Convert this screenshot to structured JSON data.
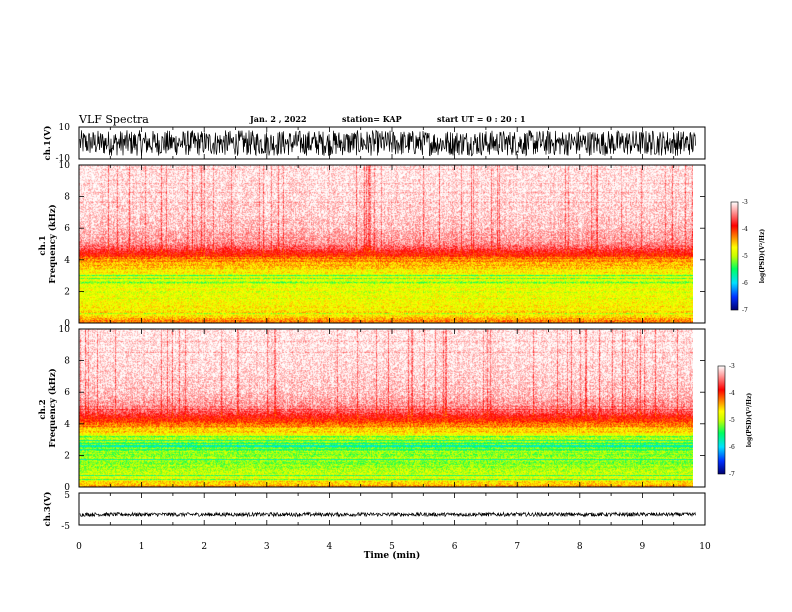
{
  "header": {
    "title": "VLF Spectra",
    "date": "Jan. 2 , 2022",
    "station": "station= KAP",
    "start_ut": "start UT =  0 : 20 : 1"
  },
  "chart_data": [
    {
      "type": "line",
      "panel": "waveform-ch1",
      "ylabel": "ch.1(V)",
      "ylim": [
        -10,
        10
      ],
      "yticks": [
        "10",
        "-10"
      ],
      "xlim": [
        0,
        10
      ],
      "signal_extent_min": 9.85,
      "approx_amplitude": [
        -8,
        8
      ]
    },
    {
      "type": "heatmap",
      "panel": "spectrogram-ch1",
      "ylabel": "ch.1\nFrequency (kHz)",
      "ylim": [
        0,
        10
      ],
      "yticks": [
        0,
        2,
        4,
        6,
        8,
        10
      ],
      "xlim": [
        0,
        10
      ],
      "signal_extent_min": 9.85,
      "power_profile_by_freq_khz": {
        "freq_khz": [
          0,
          0.5,
          1,
          1.5,
          2,
          2.5,
          3,
          3.5,
          4,
          4.5,
          5,
          6,
          8,
          10
        ],
        "log_psd": [
          -4.3,
          -4.6,
          -4.7,
          -4.8,
          -4.8,
          -4.9,
          -4.8,
          -4.6,
          -4.2,
          -3.8,
          -3.4,
          -3.2,
          -3.1,
          -3.05
        ]
      },
      "colorbar": {
        "label": "log(PSD)(V²/Hz)",
        "range": [
          -7,
          -3
        ],
        "ticks": [
          "-3",
          "-4",
          "-5",
          "-6",
          "-7"
        ],
        "colors": [
          "#000070",
          "#0030ff",
          "#00e0ff",
          "#00ff60",
          "#c8ff00",
          "#ffff00",
          "#ff8000",
          "#ff0000",
          "#ff9090",
          "#ffffff"
        ]
      }
    },
    {
      "type": "heatmap",
      "panel": "spectrogram-ch2",
      "ylabel": "ch.2\nFrequency (kHz)",
      "ylim": [
        0,
        10
      ],
      "yticks": [
        0,
        2,
        4,
        6,
        8,
        10
      ],
      "xlim": [
        0,
        10
      ],
      "signal_extent_min": 9.85,
      "power_profile_by_freq_khz": {
        "freq_khz": [
          0,
          0.5,
          1,
          1.5,
          2,
          2.5,
          3,
          3.5,
          4,
          4.5,
          5,
          6,
          8,
          10
        ],
        "log_psd": [
          -4.4,
          -4.8,
          -5.0,
          -5.1,
          -5.1,
          -5.2,
          -5.1,
          -4.6,
          -4.2,
          -3.8,
          -3.4,
          -3.2,
          -3.1,
          -3.05
        ]
      },
      "colorbar": {
        "label": "log(PSD)(V²/Hz)",
        "range": [
          -7,
          -3
        ],
        "ticks": [
          "-3",
          "-4",
          "-5",
          "-6",
          "-7"
        ],
        "colors": [
          "#000070",
          "#0030ff",
          "#00e0ff",
          "#00ff60",
          "#c8ff00",
          "#ffff00",
          "#ff8000",
          "#ff0000",
          "#ff9090",
          "#ffffff"
        ]
      }
    },
    {
      "type": "line",
      "panel": "waveform-ch3",
      "ylabel": "ch.3(V)",
      "ylim": [
        -5,
        5
      ],
      "yticks": [
        "5",
        "-5"
      ],
      "xlim": [
        0,
        10
      ],
      "signal_extent_min": 9.85,
      "approx_amplitude": [
        -0.6,
        0.6
      ],
      "approx_offset": -1.7
    }
  ],
  "xaxis": {
    "label": "Time (min)",
    "ticks": [
      "0",
      "1",
      "2",
      "3",
      "4",
      "5",
      "6",
      "7",
      "8",
      "9",
      "10"
    ]
  }
}
